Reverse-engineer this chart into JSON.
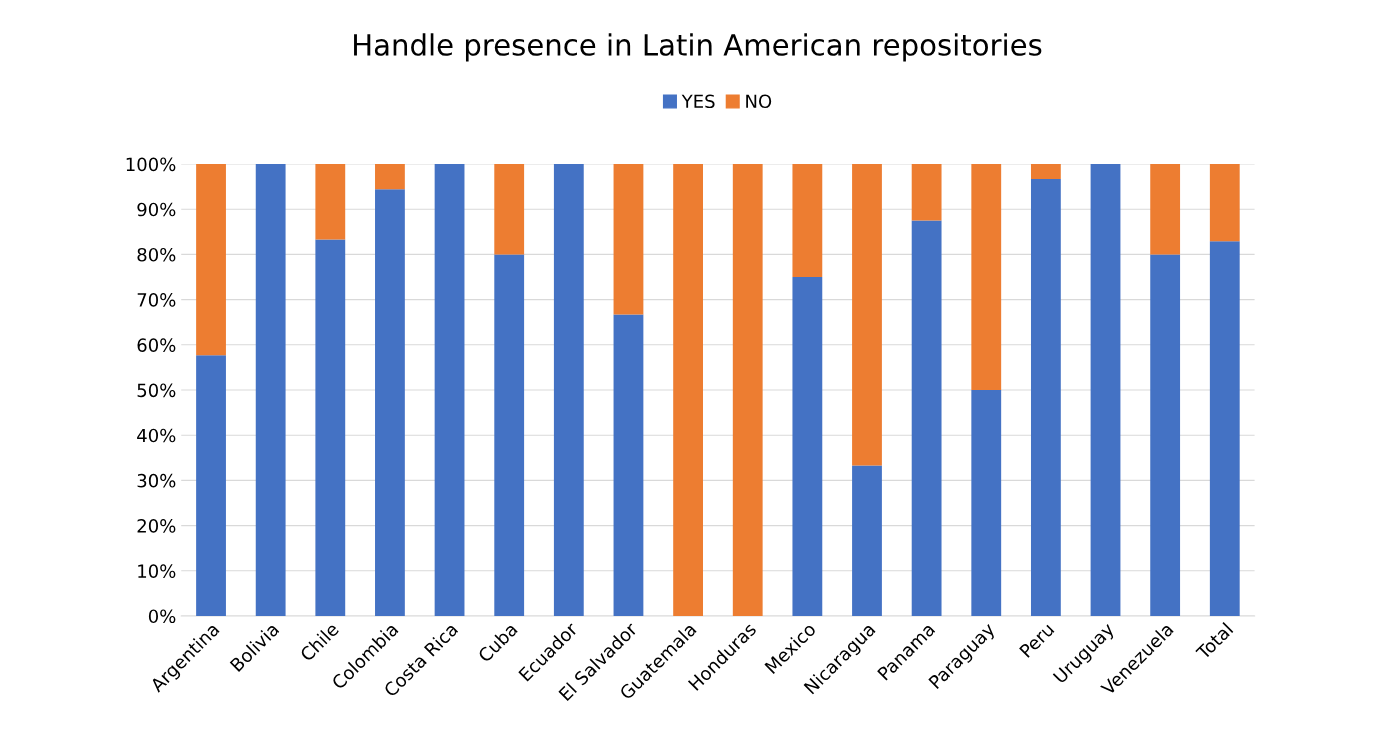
{
  "chart_data": {
    "type": "bar",
    "title": "Handle presence in Latin American repositories",
    "categories": [
      "Argentina",
      "Bolivia",
      "Chile",
      "Colombia",
      "Costa Rica",
      "Cuba",
      "Ecuador",
      "El Salvador",
      "Guatemala",
      "Honduras",
      "Mexico",
      "Nicaragua",
      "Panama",
      "Paraguay",
      "Peru",
      "Uruguay",
      "Venezuela",
      "Total"
    ],
    "series": [
      {
        "name": "YES",
        "color": "#4472c4",
        "values": [
          57.7,
          100,
          83.3,
          94.4,
          100,
          80,
          100,
          66.7,
          0,
          0,
          75,
          33.3,
          87.5,
          50,
          96.7,
          100,
          80,
          82.9
        ]
      },
      {
        "name": "NO",
        "color": "#ed7d31",
        "values": [
          42.3,
          0,
          16.7,
          5.6,
          0,
          20,
          0,
          33.3,
          100,
          100,
          25,
          66.7,
          12.5,
          50,
          3.3,
          0,
          20,
          17.1
        ]
      }
    ],
    "stacked": true,
    "ylim": [
      0,
      100
    ],
    "yticks": [
      {
        "value": 0,
        "label": "0%"
      },
      {
        "value": 10,
        "label": "10%"
      },
      {
        "value": 20,
        "label": "20%"
      },
      {
        "value": 30,
        "label": "30%"
      },
      {
        "value": 40,
        "label": "40%"
      },
      {
        "value": 50,
        "label": "50%"
      },
      {
        "value": 60,
        "label": "60%"
      },
      {
        "value": 70,
        "label": "70%"
      },
      {
        "value": 80,
        "label": "80%"
      },
      {
        "value": 90,
        "label": "90%"
      },
      {
        "value": 100,
        "label": "100%"
      }
    ],
    "grid": "y",
    "legend": "top"
  }
}
